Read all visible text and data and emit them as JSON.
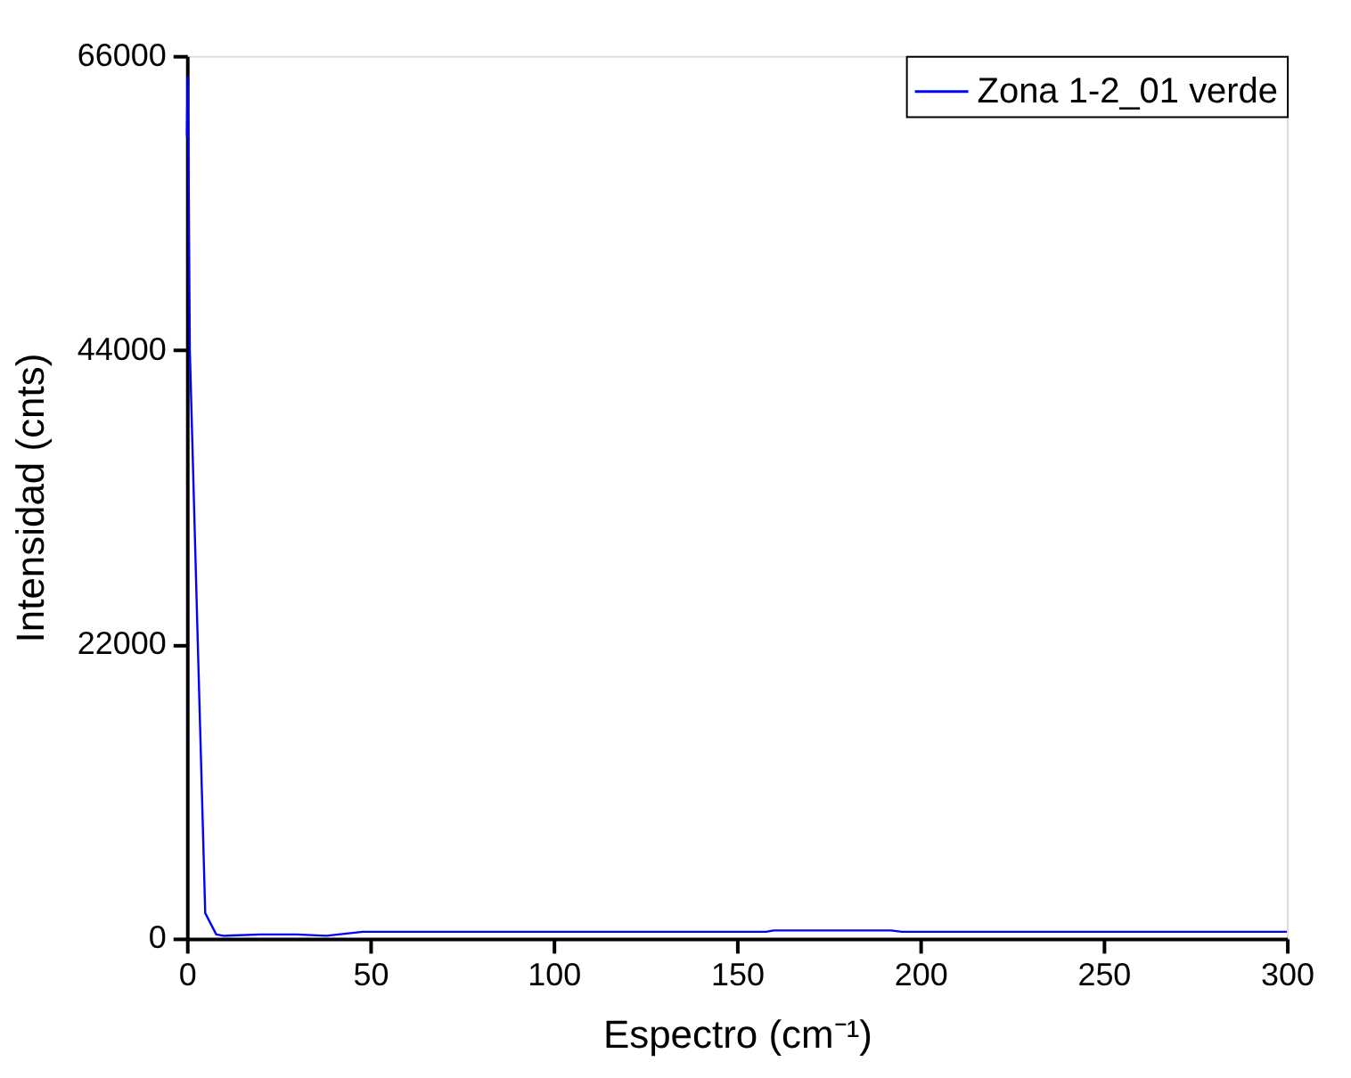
{
  "chart_data": {
    "type": "line",
    "xlabel": "Espectro (cm⁻¹)",
    "ylabel": "Intensidad (cnts)",
    "xlim": [
      0,
      300
    ],
    "xticks": [
      0,
      50,
      100,
      150,
      200,
      250,
      300
    ],
    "ylim": [
      0,
      66000
    ],
    "yticks": [
      0,
      22000,
      44000,
      66000
    ],
    "grid": false,
    "legend": "top right",
    "marker": "none",
    "line_style": "solid",
    "series": [
      {
        "name": "Zona 1-2_01 verde",
        "color": "#0000ff",
        "x": [
          0,
          0.2,
          0.5,
          0.8,
          3,
          5,
          8,
          10,
          20,
          30,
          38,
          48,
          100,
          158,
          160,
          192,
          195,
          250,
          300
        ],
        "values": [
          60000,
          64400,
          56000,
          44000,
          21800,
          1900,
          300,
          200,
          300,
          300,
          200,
          500,
          500,
          500,
          600,
          600,
          500,
          500,
          500
        ]
      }
    ]
  }
}
